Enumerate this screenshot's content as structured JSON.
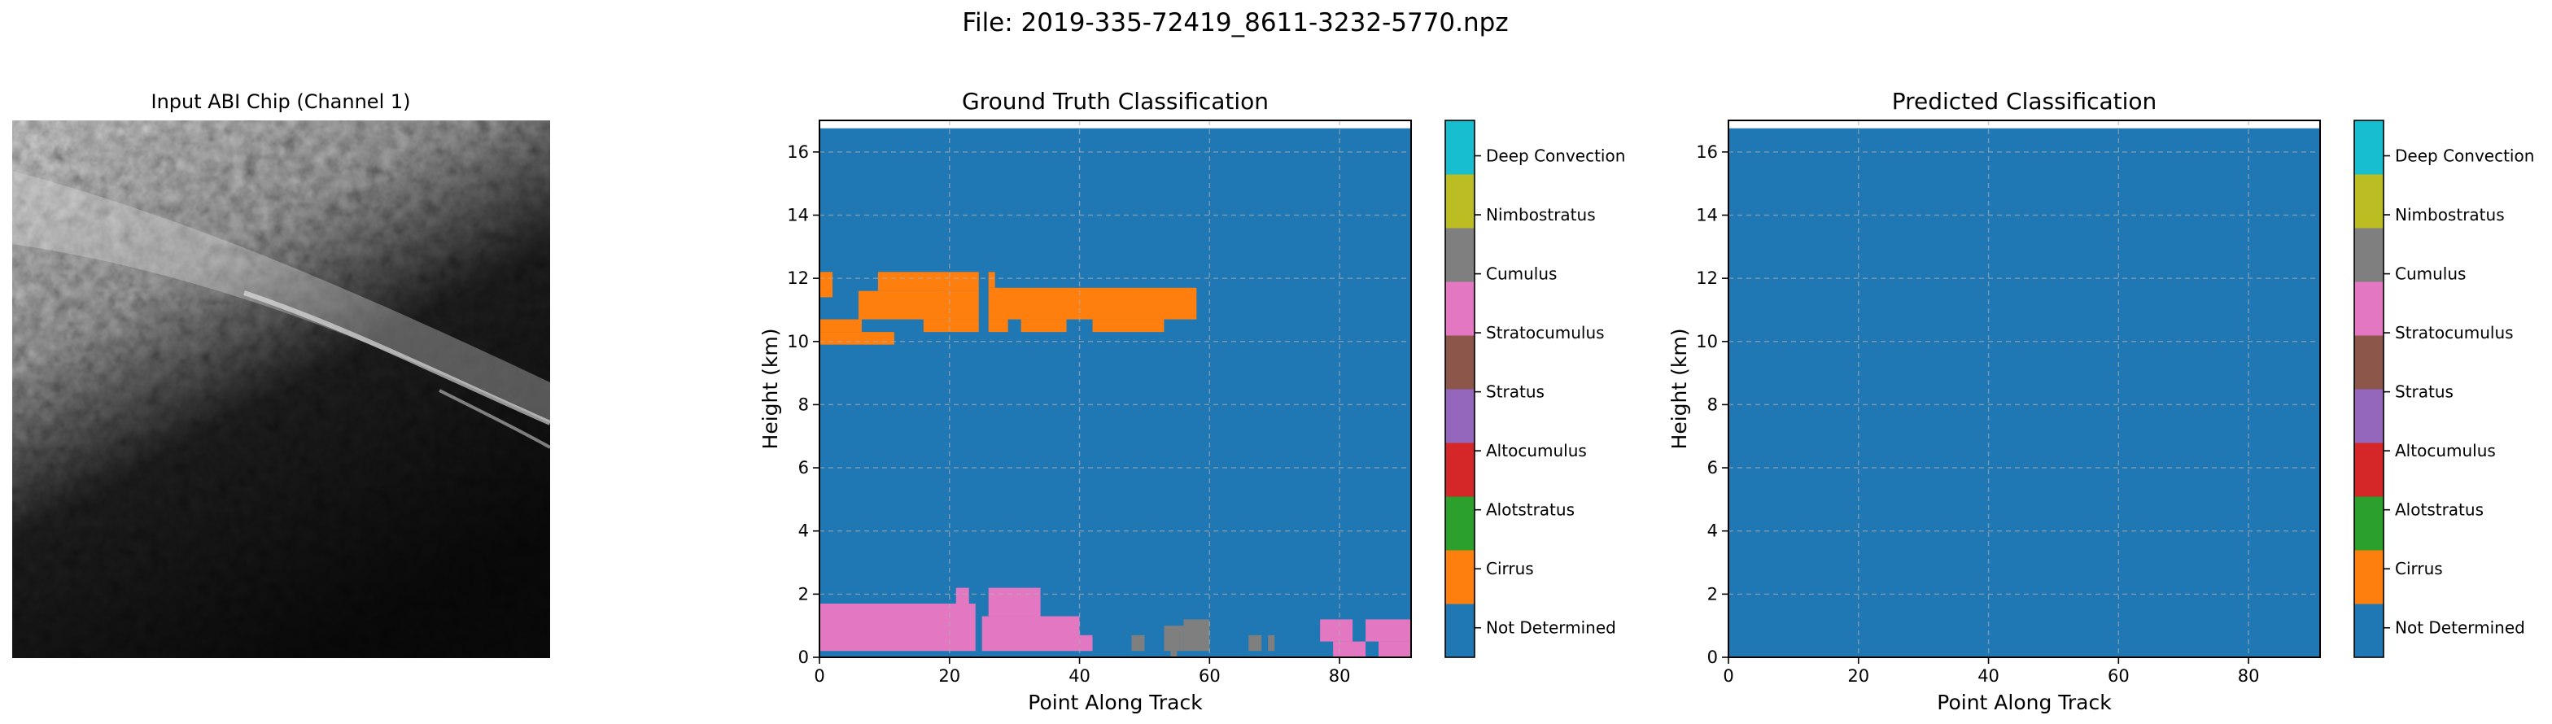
{
  "figure": {
    "title": "File: 2019-335-72419_8611-3232-5770.npz"
  },
  "input_chip": {
    "title": "Input ABI Chip (Channel 1)"
  },
  "class_labels": [
    "Not Determined",
    "Cirrus",
    "Alotstratus",
    "Altocumulus",
    "Stratus",
    "Stratocumulus",
    "Cumulus",
    "Nimbostratus",
    "Deep Convection"
  ],
  "class_colors": [
    "#1f77b4",
    "#ff7f0e",
    "#2ca02c",
    "#d62728",
    "#9467bd",
    "#8c564b",
    "#e377c2",
    "#7f7f7f",
    "#bcbd22",
    "#17becf"
  ],
  "chart_data": [
    {
      "type": "heatmap",
      "title": "Ground Truth Classification",
      "xlabel": "Point Along Track",
      "ylabel": "Height (km)",
      "xlim": [
        0,
        91
      ],
      "ylim": [
        0,
        17
      ],
      "xticks": [
        "0",
        "20",
        "40",
        "60",
        "80"
      ],
      "yticks": [
        "0",
        "2",
        "4",
        "6",
        "8",
        "10",
        "12",
        "14",
        "16"
      ],
      "background_class": 0,
      "grid": true,
      "regions": [
        {
          "class": 1,
          "x0": 0,
          "x1": 2,
          "y0": 11.4,
          "y1": 12.2
        },
        {
          "class": 1,
          "x0": 0,
          "x1": 6.5,
          "y0": 10.3,
          "y1": 10.7
        },
        {
          "class": 1,
          "x0": 0,
          "x1": 11.5,
          "y0": 9.9,
          "y1": 10.3
        },
        {
          "class": 1,
          "x0": 6,
          "x1": 24.5,
          "y0": 10.7,
          "y1": 11.6
        },
        {
          "class": 1,
          "x0": 9,
          "x1": 24.5,
          "y0": 11.6,
          "y1": 12.2
        },
        {
          "class": 1,
          "x0": 16,
          "x1": 24.5,
          "y0": 10.3,
          "y1": 10.7
        },
        {
          "class": 1,
          "x0": 26,
          "x1": 58,
          "y0": 10.7,
          "y1": 11.7
        },
        {
          "class": 1,
          "x0": 26,
          "x1": 27,
          "y0": 11.7,
          "y1": 12.2
        },
        {
          "class": 1,
          "x0": 26,
          "x1": 29,
          "y0": 10.3,
          "y1": 10.7
        },
        {
          "class": 1,
          "x0": 31,
          "x1": 38,
          "y0": 10.3,
          "y1": 10.7
        },
        {
          "class": 1,
          "x0": 42,
          "x1": 53,
          "y0": 10.3,
          "y1": 10.7
        },
        {
          "class": 6,
          "x0": 0,
          "x1": 24,
          "y0": 0.2,
          "y1": 1.7
        },
        {
          "class": 6,
          "x0": 21,
          "x1": 23,
          "y0": 1.7,
          "y1": 2.2
        },
        {
          "class": 6,
          "x0": 26,
          "x1": 34,
          "y0": 1.3,
          "y1": 2.2
        },
        {
          "class": 6,
          "x0": 25,
          "x1": 40,
          "y0": 0.2,
          "y1": 1.3
        },
        {
          "class": 6,
          "x0": 40,
          "x1": 42,
          "y0": 0.2,
          "y1": 0.7
        },
        {
          "class": 7,
          "x0": 48,
          "x1": 50,
          "y0": 0.2,
          "y1": 0.7
        },
        {
          "class": 7,
          "x0": 53,
          "x1": 56,
          "y0": 0.2,
          "y1": 1.0
        },
        {
          "class": 7,
          "x0": 56,
          "x1": 60,
          "y0": 0.2,
          "y1": 1.2
        },
        {
          "class": 7,
          "x0": 54,
          "x1": 55,
          "y0": 0.0,
          "y1": 0.2
        },
        {
          "class": 7,
          "x0": 66,
          "x1": 68,
          "y0": 0.2,
          "y1": 0.7
        },
        {
          "class": 7,
          "x0": 69,
          "x1": 70,
          "y0": 0.2,
          "y1": 0.7
        },
        {
          "class": 6,
          "x0": 77,
          "x1": 82,
          "y0": 0.5,
          "y1": 1.2
        },
        {
          "class": 6,
          "x0": 79,
          "x1": 84,
          "y0": 0.0,
          "y1": 0.5
        },
        {
          "class": 6,
          "x0": 84,
          "x1": 91,
          "y0": 0.5,
          "y1": 1.2
        },
        {
          "class": 6,
          "x0": 86,
          "x1": 91,
          "y0": 0.0,
          "y1": 0.5
        }
      ],
      "colorbar": {
        "labels": [
          "Not Determined",
          "Cirrus",
          "Alotstratus",
          "Altocumulus",
          "Stratus",
          "Stratocumulus",
          "Cumulus",
          "Nimbostratus",
          "Deep Convection"
        ]
      }
    },
    {
      "type": "heatmap",
      "title": "Predicted Classification",
      "xlabel": "Point Along Track",
      "ylabel": "Height (km)",
      "xlim": [
        0,
        91
      ],
      "ylim": [
        0,
        17
      ],
      "xticks": [
        "0",
        "20",
        "40",
        "60",
        "80"
      ],
      "yticks": [
        "0",
        "2",
        "4",
        "6",
        "8",
        "10",
        "12",
        "14",
        "16"
      ],
      "background_class": 0,
      "grid": true,
      "regions": [],
      "colorbar": {
        "labels": [
          "Not Determined",
          "Cirrus",
          "Alotstratus",
          "Altocumulus",
          "Stratus",
          "Stratocumulus",
          "Cumulus",
          "Nimbostratus",
          "Deep Convection"
        ]
      }
    }
  ]
}
